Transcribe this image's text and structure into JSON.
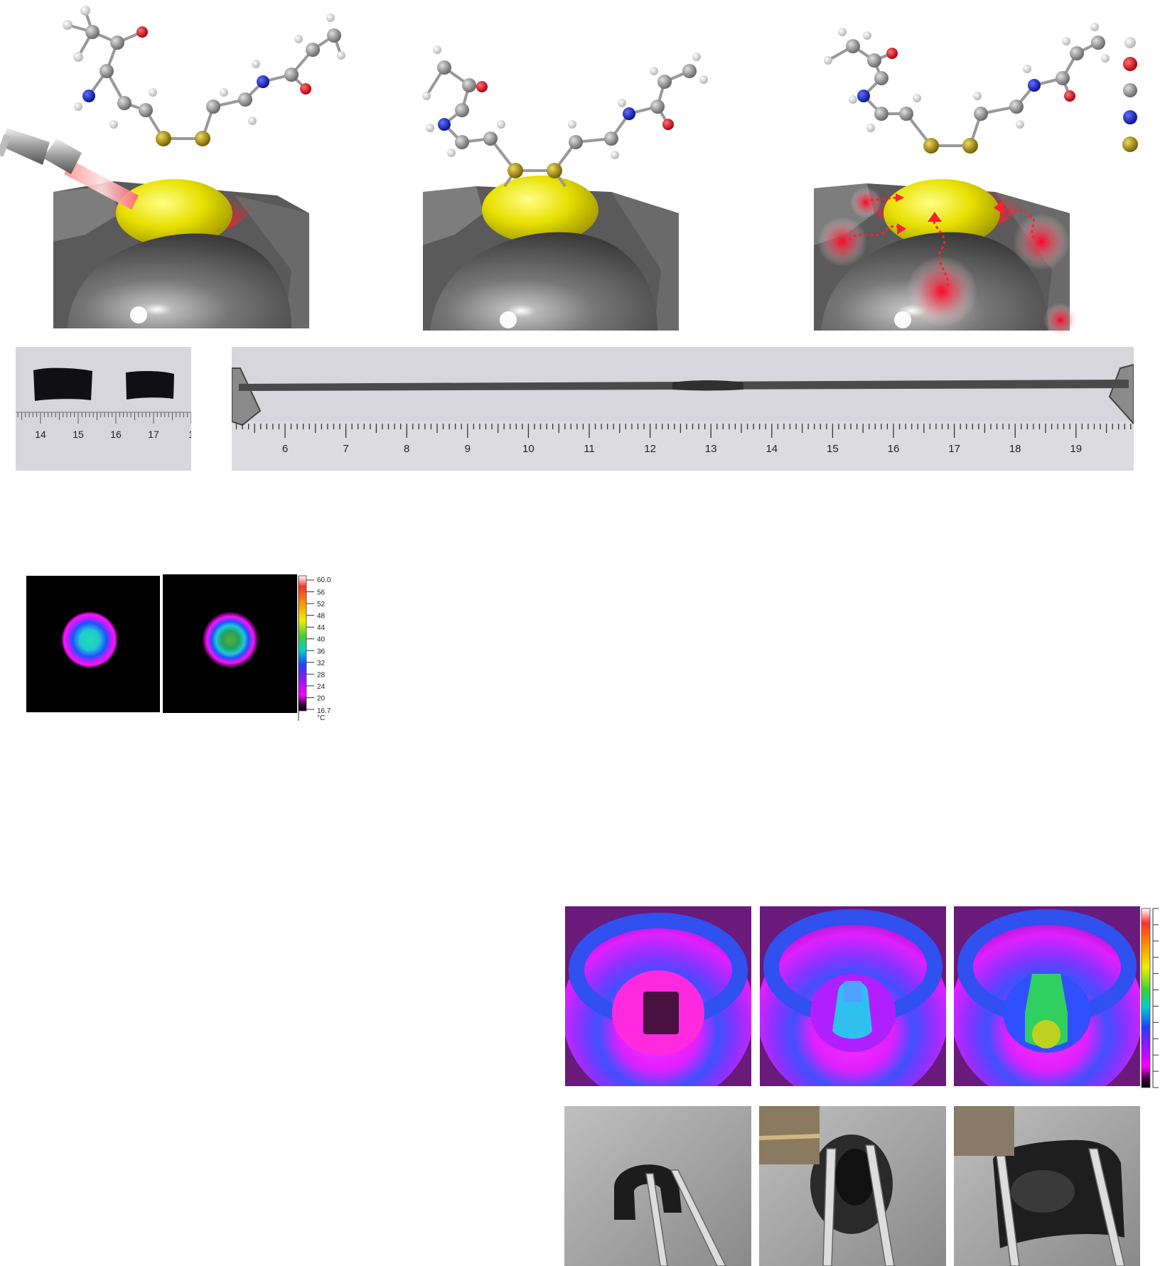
{
  "scenes": [
    {
      "id": "laser-heating",
      "has_laser": true,
      "has_glow": true
    },
    {
      "id": "disulfide-bound",
      "has_laser": false,
      "has_glow": false
    },
    {
      "id": "heat-diffusion",
      "has_laser": false,
      "has_glow": true
    }
  ],
  "atom_legend": [
    {
      "element": "H",
      "color": "#f2f2f2"
    },
    {
      "element": "O",
      "color": "#d71920"
    },
    {
      "element": "C",
      "color": "#8c8c8c"
    },
    {
      "element": "N",
      "color": "#1a2fc8"
    },
    {
      "element": "S",
      "color": "#b59a10"
    }
  ],
  "short_ruler": {
    "labels": [
      "14",
      "15",
      "16",
      "17",
      "1"
    ]
  },
  "long_ruler": {
    "labels": [
      "6",
      "7",
      "8",
      "9",
      "10",
      "11",
      "12",
      "13",
      "14",
      "15",
      "16",
      "17",
      "18",
      "19"
    ]
  },
  "thermal_colorbar": {
    "max_label": "60.0",
    "labels": [
      "56",
      "52",
      "48",
      "44",
      "40",
      "36",
      "32",
      "28",
      "24",
      "20"
    ],
    "min_label": "16.7",
    "unit": "°C",
    "colors": [
      "#ffffff",
      "#ff2b2b",
      "#ff8c00",
      "#ffff00",
      "#40d030",
      "#00d0d0",
      "#2040ff",
      "#a010ff",
      "#ff00ff",
      "#600060",
      "#000000"
    ]
  },
  "spot_images": [
    {
      "id": "spot-1",
      "core_color": "#20c8b8"
    },
    {
      "id": "spot-2",
      "core_color": "#2aa84a"
    }
  ],
  "cube_thermal_images": [
    {
      "id": "cube-thermal-1",
      "cube_color": "#4a1040"
    },
    {
      "id": "cube-thermal-2",
      "cube_color": "#30c0f0"
    },
    {
      "id": "cube-thermal-3",
      "cube_color": "#30d060"
    }
  ],
  "photo_panels": [
    {
      "id": "photo-1",
      "has_inset": false
    },
    {
      "id": "photo-2",
      "has_inset": true
    },
    {
      "id": "photo-3",
      "has_inset": true
    }
  ]
}
